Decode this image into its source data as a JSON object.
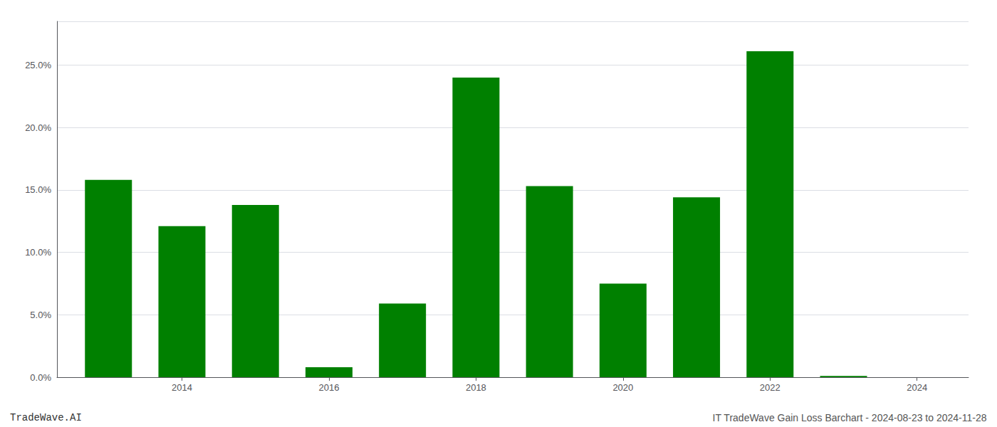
{
  "chart_data": {
    "type": "bar",
    "x": [
      2013,
      2014,
      2015,
      2016,
      2017,
      2018,
      2019,
      2020,
      2021,
      2022,
      2023
    ],
    "values": [
      0.158,
      0.121,
      0.138,
      0.008,
      0.059,
      0.24,
      0.153,
      0.075,
      0.144,
      0.261,
      0.001
    ],
    "color": "#008000",
    "xlim": [
      2012.3,
      2024.7
    ],
    "xticks": [
      2014,
      2016,
      2018,
      2020,
      2022,
      2024
    ],
    "ylim": [
      0,
      0.285
    ],
    "yticks": [
      {
        "value": 0.0,
        "label": "0.0%"
      },
      {
        "value": 0.05,
        "label": "5.0%"
      },
      {
        "value": 0.1,
        "label": "10.0%"
      },
      {
        "value": 0.15,
        "label": "15.0%"
      },
      {
        "value": 0.2,
        "label": "20.0%"
      },
      {
        "value": 0.25,
        "label": "25.0%"
      }
    ],
    "grid": true,
    "annotations": [
      "TradeWave.AI",
      "IT TradeWave Gain Loss Barchart - 2024-08-23 to 2024-11-28"
    ]
  }
}
